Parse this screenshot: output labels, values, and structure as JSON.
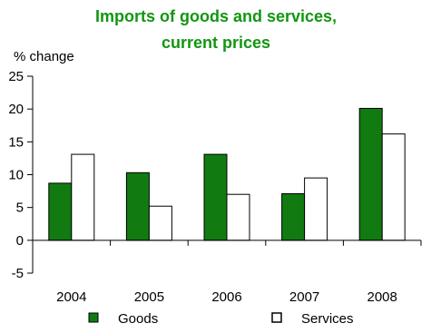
{
  "chart_data": {
    "type": "bar",
    "title_line1": "Imports of goods and services,",
    "title_line2": "current prices",
    "ylabel": "% change",
    "categories": [
      "2004",
      "2005",
      "2006",
      "2007",
      "2008"
    ],
    "series": [
      {
        "name": "Goods",
        "values": [
          8.7,
          10.3,
          13.1,
          7.1,
          20.1
        ],
        "color": "#117b11"
      },
      {
        "name": "Services",
        "values": [
          13.1,
          5.2,
          7.0,
          9.5,
          16.2
        ],
        "color": "#ffffff"
      }
    ],
    "ylim": [
      -5,
      25
    ],
    "yticks": [
      -5,
      0,
      5,
      10,
      15,
      20,
      25
    ],
    "grid": false,
    "legend_position": "bottom",
    "title_color": "#129612"
  }
}
